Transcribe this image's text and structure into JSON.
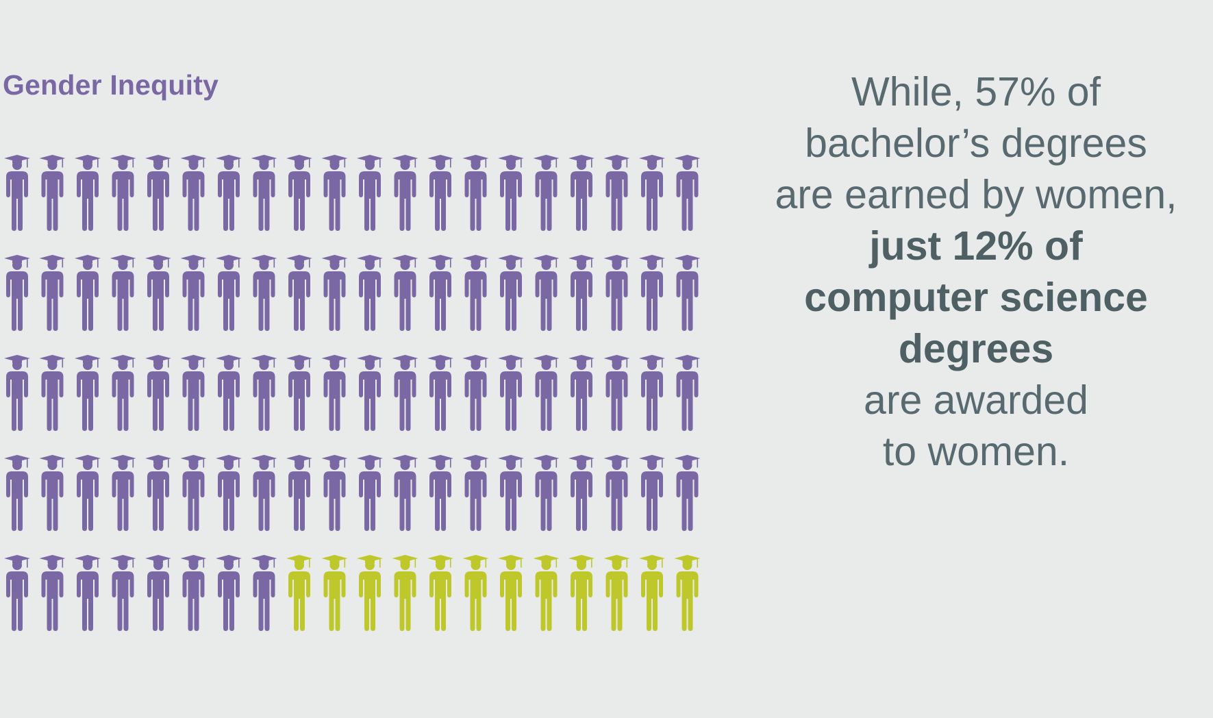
{
  "title": "Gender Inequity",
  "caption": {
    "line1": "While, 57% of",
    "line2": "bachelor’s degrees",
    "line3": "are earned by women,",
    "bold1": "just 12% of",
    "bold2": "computer science",
    "bold3": "degrees",
    "line4": "are awarded",
    "line5": "to women."
  },
  "colors": {
    "background": "#e9ebea",
    "majority": "#7a68a4",
    "highlight": "#bec82a",
    "text": "#586a6f"
  },
  "chart_data": {
    "type": "pictograph",
    "icon": "graduate-figure-icon",
    "rows": 5,
    "columns": 20,
    "total": 100,
    "series": [
      {
        "value": 88,
        "color": "#7a68a4"
      },
      {
        "value": 12,
        "color": "#bec82a"
      }
    ]
  }
}
